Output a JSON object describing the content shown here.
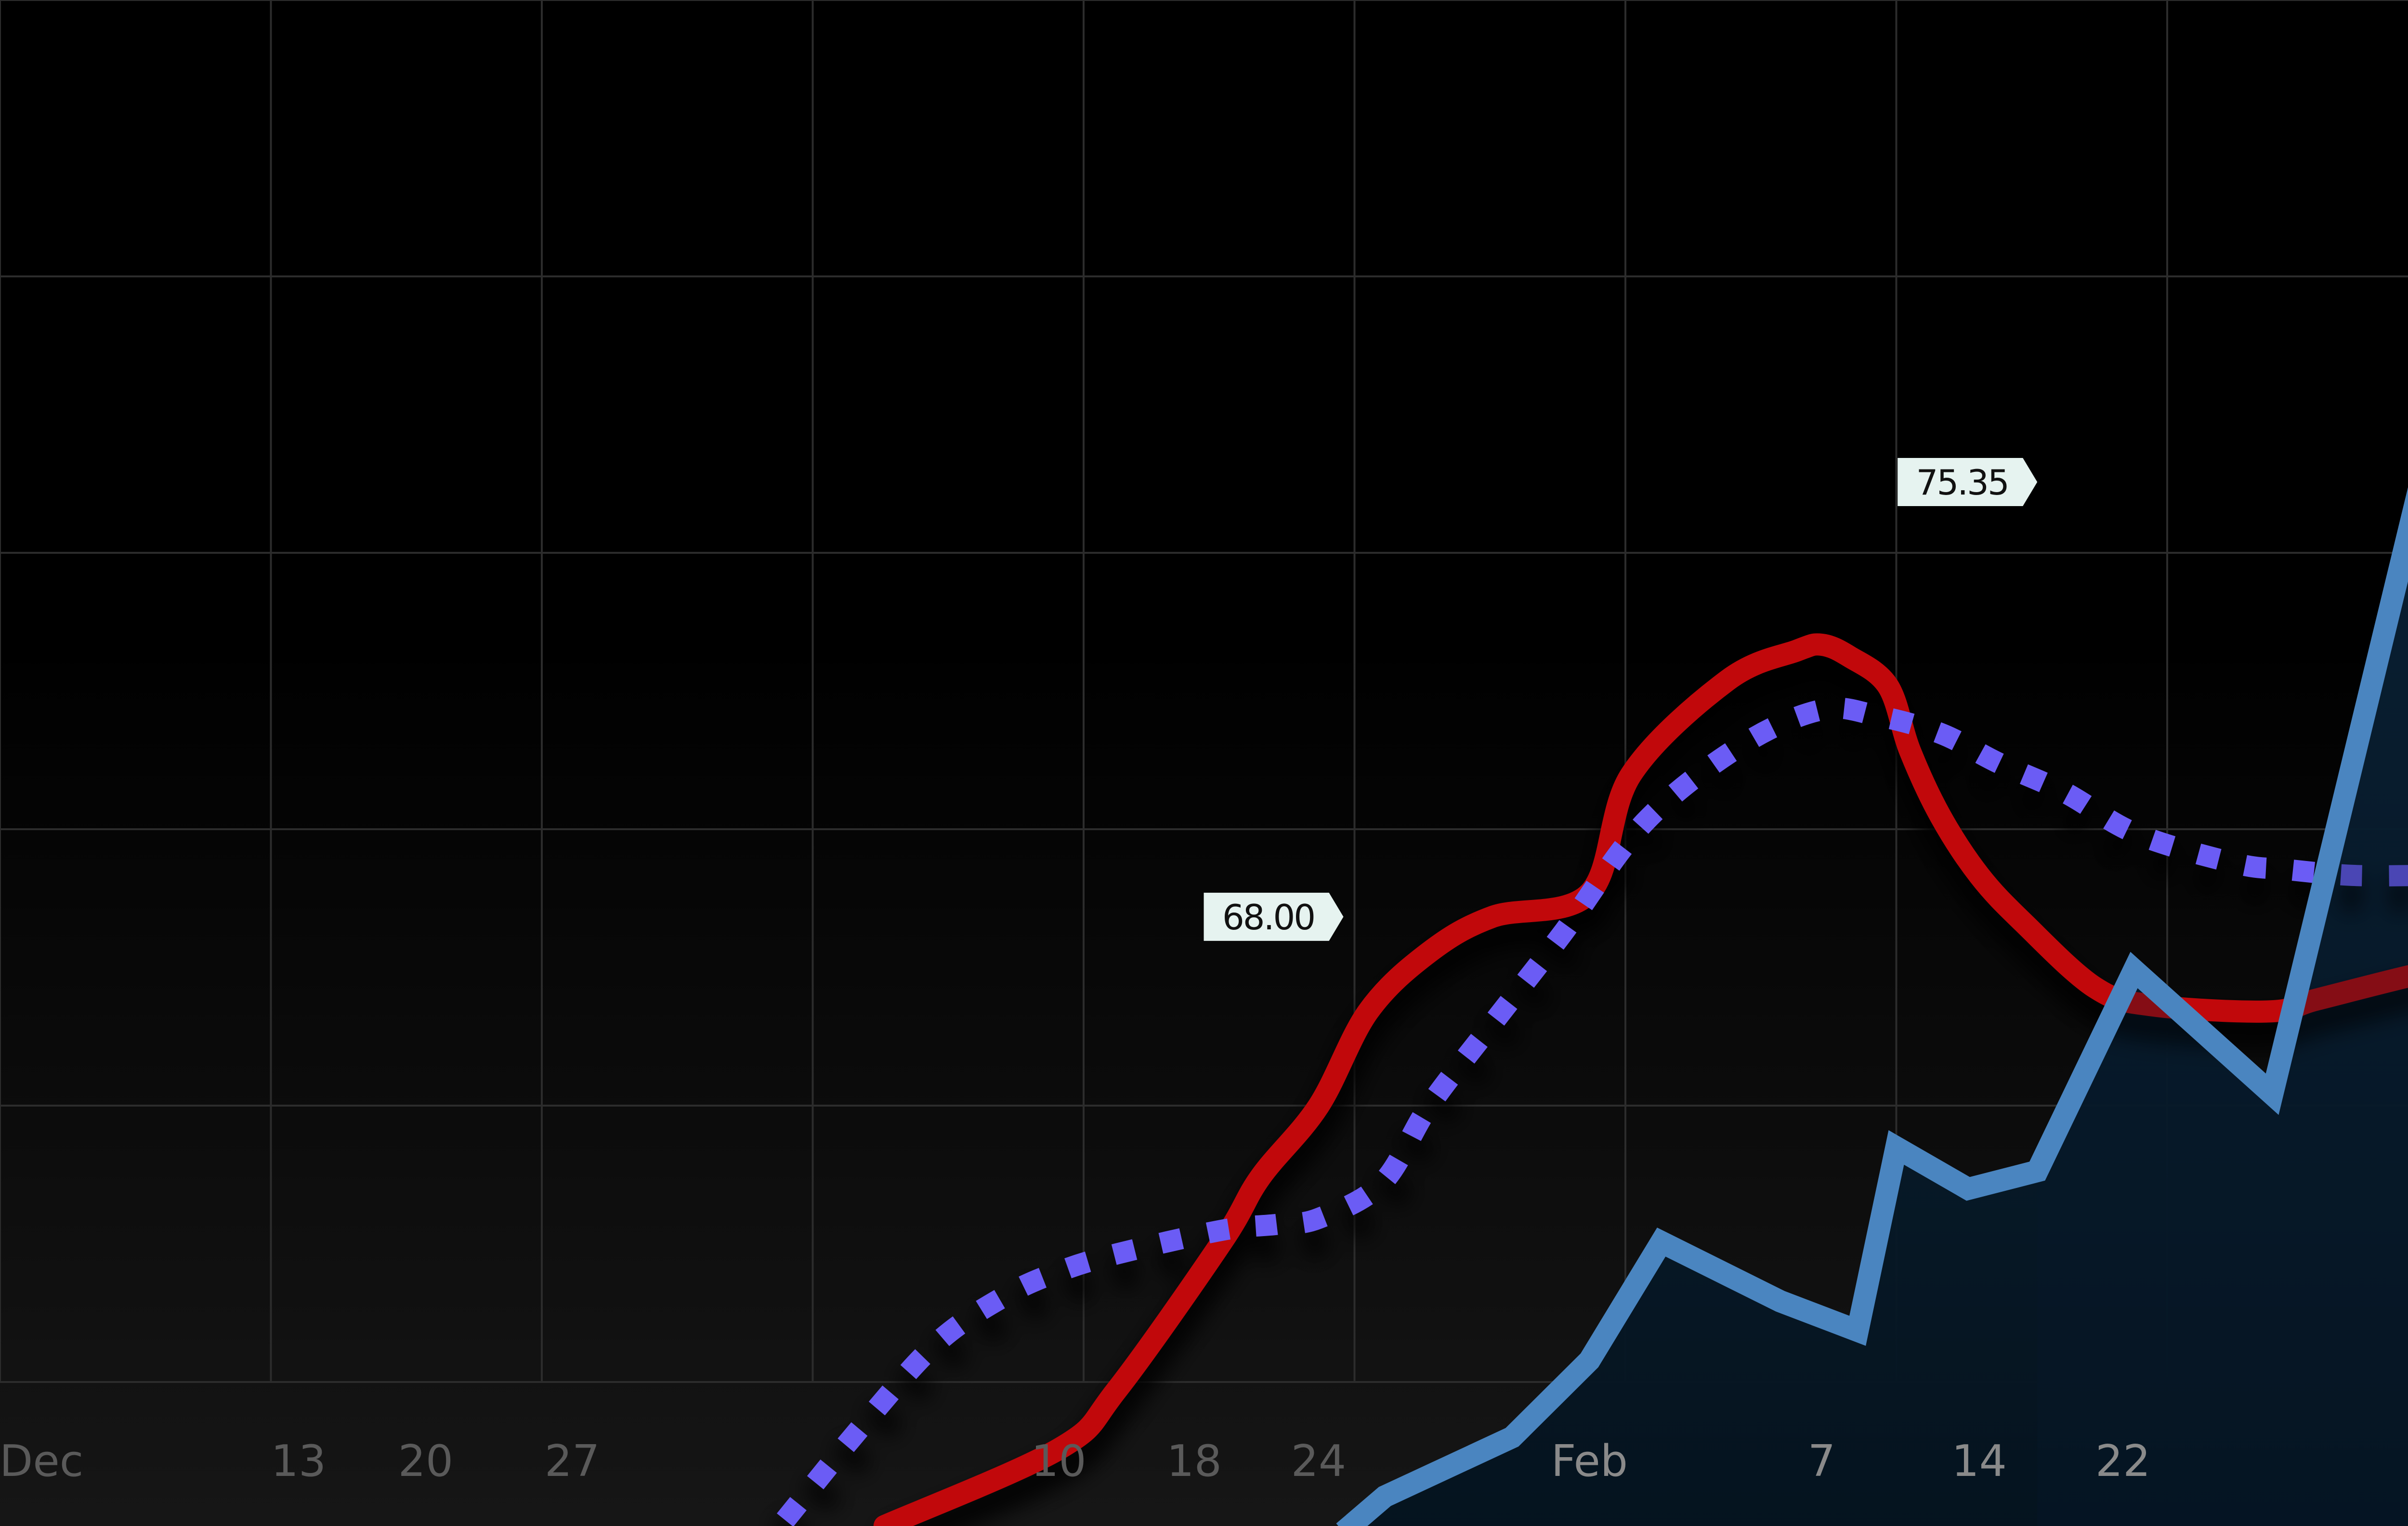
{
  "chart_data": {
    "type": "line",
    "title": "",
    "xlabel": "",
    "ylabel": "",
    "grid": true,
    "x_ticks": [
      "Dec",
      "13",
      "20",
      "27",
      "10",
      "18",
      "24",
      "Feb",
      "7",
      "14",
      "22"
    ],
    "x_tick_positions": [
      0.0,
      9.3,
      13.9,
      19.2,
      36.8,
      41.7,
      46.2,
      56.0,
      64.4,
      70.1,
      75.3
    ],
    "xlim": [
      -1.5,
      86.5
    ],
    "ylim": [
      57.7,
      83.5
    ],
    "series": [
      {
        "style": "line",
        "color": "#c1080b",
        "x": [
          30.5,
          36.8,
          38.9,
          42.7,
          44.1,
          46.2,
          48.0,
          50.2,
          52.5,
          56.0,
          57.5,
          61.0,
          63.5,
          64.4,
          65.4,
          66.8,
          67.6,
          68.7,
          70.1,
          71.7,
          74.3,
          76.4,
          80.6,
          82.3,
          85.7,
          86.2
        ],
        "y": [
          57.7,
          59.0,
          60.0,
          62.5,
          63.6,
          64.8,
          66.4,
          67.4,
          68.0,
          68.4,
          70.4,
          72.0,
          72.5,
          72.6,
          72.4,
          71.9,
          70.8,
          69.7,
          68.7,
          67.9,
          66.8,
          66.5,
          66.4,
          66.6,
          67.0,
          67.0
        ]
      },
      {
        "style": "dotted",
        "color": "#6b5cf5",
        "x": [
          26.9,
          29.7,
          32.4,
          34.9,
          36.8,
          38.9,
          42.7,
          44.7,
          46.2,
          48.5,
          50.2,
          52.5,
          55.0,
          58.0,
          61.5,
          64.4,
          66.4,
          68.7,
          70.8,
          73.2,
          75.8,
          79.4,
          81.2,
          83.6,
          86.2
        ],
        "y": [
          57.8,
          59.4,
          60.8,
          61.6,
          62.0,
          62.3,
          62.7,
          62.8,
          62.9,
          63.5,
          64.8,
          66.2,
          67.7,
          69.6,
          70.9,
          71.5,
          71.4,
          71.1,
          70.6,
          70.1,
          69.4,
          68.9,
          68.8,
          68.7,
          68.7
        ]
      },
      {
        "style": "area",
        "color": "#4a85c0",
        "x": [
          47.1,
          48.6,
          53.2,
          56.0,
          58.6,
          62.9,
          65.7,
          67.1,
          69.7,
          72.2,
          75.7,
          80.7,
          86.2
        ],
        "y": [
          57.6,
          58.2,
          59.2,
          60.5,
          62.5,
          61.5,
          61.0,
          64.1,
          63.4,
          63.7,
          67.1,
          65.0,
          75.6
        ]
      }
    ],
    "annotations": [
      {
        "text": "68.00",
        "x": 47.1,
        "y": 68.0
      },
      {
        "text": "75.35",
        "x": 72.2,
        "y": 75.35
      }
    ]
  }
}
